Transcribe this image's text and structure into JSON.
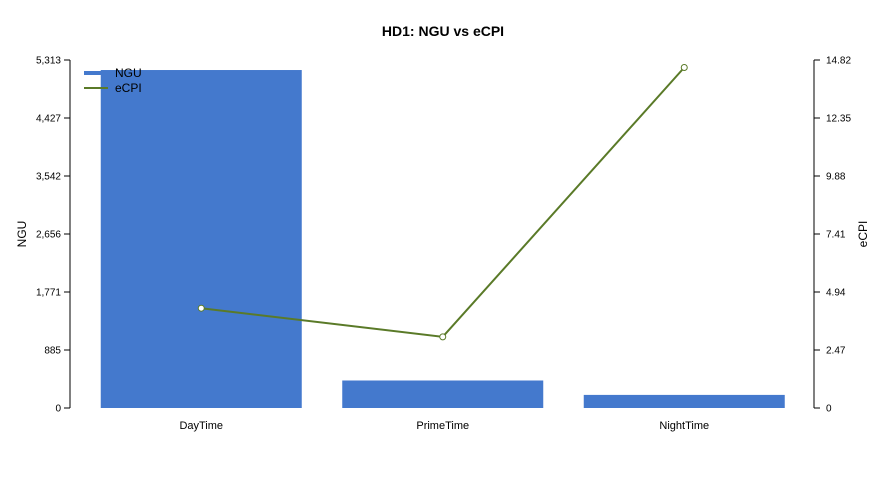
{
  "chart_data": {
    "type": "bar+line",
    "title": "HD1: NGU vs eCPI",
    "categories": [
      "DayTime",
      "PrimeTime",
      "NightTime"
    ],
    "series": [
      {
        "name": "NGU",
        "type": "bar",
        "axis": "left",
        "color": "#4479cd",
        "values": [
          5160,
          420,
          200
        ]
      },
      {
        "name": "eCPI",
        "type": "line",
        "axis": "right",
        "color": "#5a7a28",
        "values": [
          4.25,
          3.03,
          14.5
        ]
      }
    ],
    "ylabel_left": "NGU",
    "ylabel_right": "eCPI",
    "ylim_left": [
      0,
      5313
    ],
    "ylim_right": [
      0,
      14.82
    ],
    "yticks_left": [
      "0",
      "885",
      "1,771",
      "2,656",
      "3,542",
      "4,427",
      "5,313"
    ],
    "yticks_right": [
      "0",
      "2.47",
      "4.94",
      "7.41",
      "9.88",
      "12.35",
      "14.82"
    ],
    "legend": {
      "position": "top-left",
      "entries": [
        "NGU",
        "eCPI"
      ]
    },
    "grid": false
  }
}
